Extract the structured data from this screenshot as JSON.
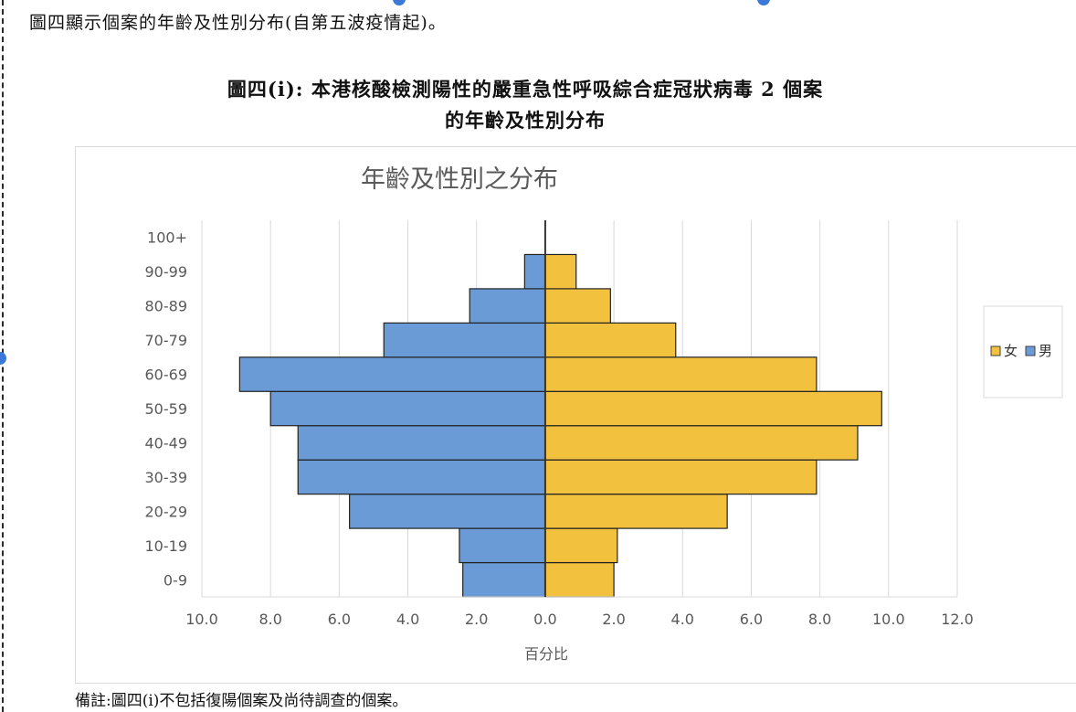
{
  "intro_text": "圖四顯示個案的年齡及性別分布(自第五波疫情起)。",
  "figure_title_line1": "圖四(i): 本港核酸檢測陽性的嚴重急性呼吸綜合症冠狀病毒 2 個案",
  "figure_title_line2": "的年齡及性別分布",
  "footnote": "備註:圖四(i)不包括復陽個案及尚待調查的個案。",
  "colors": {
    "female": "#f2c13d",
    "male": "#6a9bd6",
    "grid": "#d9d9d9",
    "axis_text": "#595959"
  },
  "chart_data": {
    "type": "bar",
    "orientation": "horizontal",
    "layout": "population-pyramid",
    "title": "年齡及性別之分布",
    "xlabel": "百分比",
    "ylabel": "",
    "categories": [
      "0-9",
      "10-19",
      "20-29",
      "30-39",
      "40-49",
      "50-59",
      "60-69",
      "70-79",
      "80-89",
      "90-99",
      "100+"
    ],
    "series": [
      {
        "name": "女",
        "side": "right",
        "values": [
          2.0,
          2.1,
          5.3,
          7.9,
          9.1,
          9.8,
          7.9,
          3.8,
          1.9,
          0.9,
          0.0
        ]
      },
      {
        "name": "男",
        "side": "left",
        "values": [
          2.4,
          2.5,
          5.7,
          7.2,
          7.2,
          8.0,
          8.9,
          4.7,
          2.2,
          0.6,
          0.0
        ]
      }
    ],
    "xlim": [
      -10,
      12
    ],
    "xtick_labels": [
      "10.0",
      "8.0",
      "6.0",
      "4.0",
      "2.0",
      "0.0",
      "2.0",
      "4.0",
      "6.0",
      "8.0",
      "10.0",
      "12.0"
    ],
    "grid": "vertical",
    "legend_position": "right"
  }
}
